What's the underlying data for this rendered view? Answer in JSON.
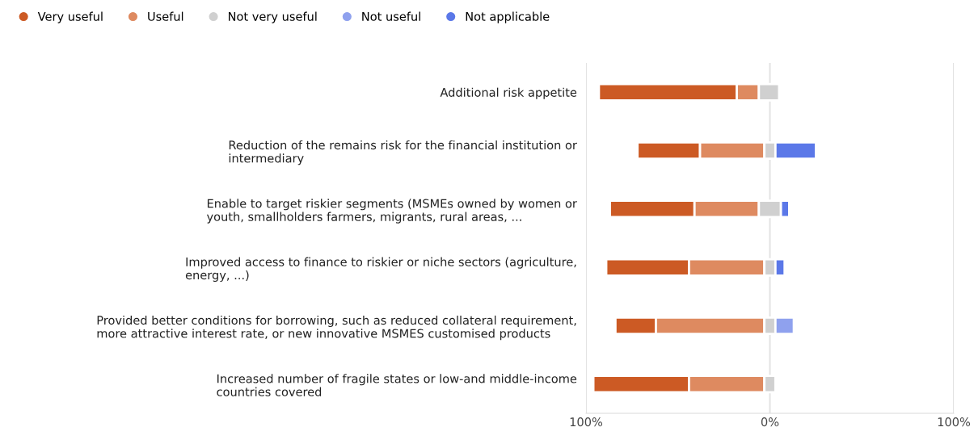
{
  "chart_data": {
    "type": "bar",
    "orientation": "horizontal",
    "categories": [
      "Additional risk appetite",
      "Reduction of the remains risk for the financial institution or\nintermediary",
      "Enable to target riskier segments (MSMEs owned by women or\nyouth, smallholders farmers, migrants, rural areas, ...",
      "Improved access to finance to riskier or niche sectors (agriculture,\nenergy, ...)",
      "Provided better conditions for borrowing, such as reduced collateral requirement,\nmore attractive interest rate, or new innovative MSMES customised products",
      "Increased number of fragile states or low-and middle-income\ncountries covered"
    ],
    "series": [
      {
        "name": "Very useful",
        "color": "#cc5a24",
        "base": [
          -93,
          -72,
          -87,
          -89,
          -84,
          -96
        ],
        "values": [
          75,
          34,
          46,
          45,
          22,
          52
        ]
      },
      {
        "name": "Useful",
        "color": "#de8a60",
        "base": [
          -18,
          -38,
          -41,
          -44,
          -62,
          -44
        ],
        "values": [
          12,
          35,
          35,
          41,
          59,
          41
        ]
      },
      {
        "name": "Not very useful",
        "color": "#d0d0d0",
        "base": [
          -6,
          -3,
          -6,
          -3,
          -3,
          -3
        ],
        "values": [
          11,
          6,
          12,
          6,
          6,
          6
        ]
      },
      {
        "name": "Not useful",
        "color": "#8fa1ee",
        "base": [
          null,
          null,
          null,
          null,
          3,
          null
        ],
        "values": [
          null,
          null,
          null,
          null,
          10,
          null
        ]
      },
      {
        "name": "Not applicable",
        "color": "#5b78e8",
        "base": [
          null,
          3,
          6,
          3,
          null,
          null
        ],
        "values": [
          null,
          22,
          4.5,
          5,
          null,
          null
        ]
      }
    ],
    "xlim": [
      -100,
      100
    ],
    "xticks": [
      {
        "value": -100,
        "label": "100%"
      },
      {
        "value": 0,
        "label": "0%"
      },
      {
        "value": 100,
        "label": "100%"
      }
    ],
    "grid": "x",
    "legend": "top left",
    "marker": "circle"
  }
}
